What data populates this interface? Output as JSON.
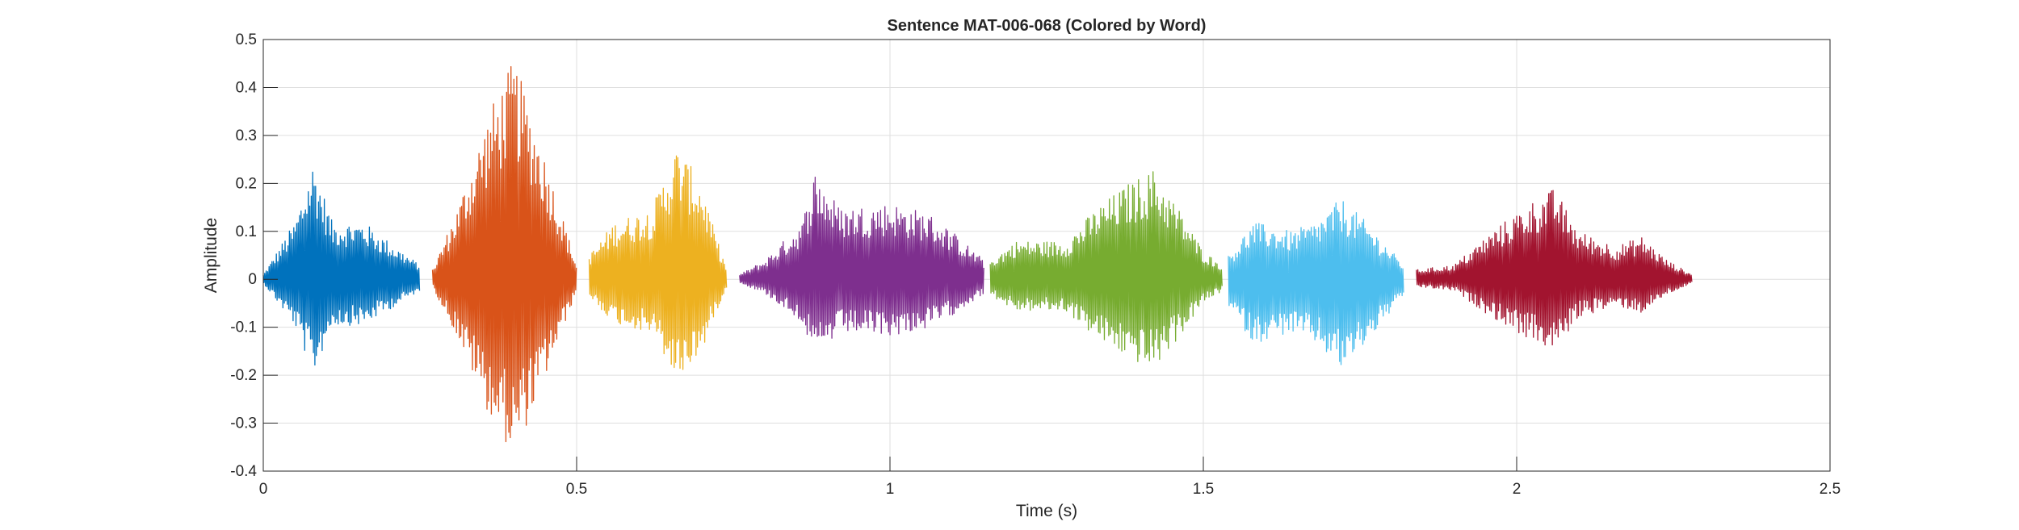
{
  "chart_data": {
    "type": "line",
    "title": "Sentence MAT-006-068 (Colored by Word)",
    "xlabel": "Time (s)",
    "ylabel": "Amplitude",
    "xlim": [
      0,
      2.5
    ],
    "ylim": [
      -0.4,
      0.5
    ],
    "x_ticks": [
      0,
      0.5,
      1,
      1.5,
      2,
      2.5
    ],
    "x_tick_labels": [
      "0",
      "0.5",
      "1",
      "1.5",
      "2",
      "2.5"
    ],
    "y_ticks": [
      -0.4,
      -0.3,
      -0.2,
      -0.1,
      0,
      0.1,
      0.2,
      0.3,
      0.4,
      0.5
    ],
    "y_tick_labels": [
      "-0.4",
      "-0.3",
      "-0.2",
      "-0.1",
      "0",
      "0.1",
      "0.2",
      "0.3",
      "0.4",
      "0.5"
    ],
    "grid": true,
    "series": [
      {
        "color": "#0072BD",
        "x_start": 0.0,
        "x_end": 0.25,
        "y_max": 0.25,
        "y_min": -0.2,
        "envelope": [
          [
            0,
            0.01
          ],
          [
            0.05,
            0.12
          ],
          [
            0.08,
            0.25
          ],
          [
            0.11,
            0.12
          ],
          [
            0.16,
            0.12
          ],
          [
            0.2,
            0.08
          ],
          [
            0.25,
            0.03
          ]
        ]
      },
      {
        "color": "#D95319",
        "x_start": 0.27,
        "x_end": 0.5,
        "y_max": 0.46,
        "y_min": -0.37,
        "envelope": [
          [
            0.27,
            0.02
          ],
          [
            0.31,
            0.15
          ],
          [
            0.36,
            0.35
          ],
          [
            0.4,
            0.46
          ],
          [
            0.44,
            0.3
          ],
          [
            0.48,
            0.12
          ],
          [
            0.5,
            0.03
          ]
        ]
      },
      {
        "color": "#EDB120",
        "x_start": 0.52,
        "x_end": 0.74,
        "y_max": 0.29,
        "y_min": -0.22,
        "envelope": [
          [
            0.52,
            0.05
          ],
          [
            0.56,
            0.12
          ],
          [
            0.62,
            0.15
          ],
          [
            0.66,
            0.28
          ],
          [
            0.7,
            0.2
          ],
          [
            0.72,
            0.1
          ],
          [
            0.74,
            0.02
          ]
        ]
      },
      {
        "color": "#7E2F8E",
        "x_start": 0.76,
        "x_end": 1.15,
        "y_max": 0.23,
        "y_min": -0.17,
        "envelope": [
          [
            0.76,
            0.01
          ],
          [
            0.8,
            0.04
          ],
          [
            0.86,
            0.12
          ],
          [
            0.88,
            0.23
          ],
          [
            0.92,
            0.15
          ],
          [
            1.0,
            0.16
          ],
          [
            1.06,
            0.14
          ],
          [
            1.1,
            0.1
          ],
          [
            1.15,
            0.04
          ]
        ]
      },
      {
        "color": "#77AC30",
        "x_start": 1.16,
        "x_end": 1.53,
        "y_max": 0.23,
        "y_min": -0.19,
        "envelope": [
          [
            1.16,
            0.04
          ],
          [
            1.2,
            0.08
          ],
          [
            1.28,
            0.08
          ],
          [
            1.33,
            0.15
          ],
          [
            1.38,
            0.2
          ],
          [
            1.42,
            0.23
          ],
          [
            1.46,
            0.15
          ],
          [
            1.5,
            0.06
          ],
          [
            1.53,
            0.03
          ]
        ]
      },
      {
        "color": "#4DBEEE",
        "x_start": 1.54,
        "x_end": 1.82,
        "y_max": 0.17,
        "y_min": -0.19,
        "envelope": [
          [
            1.54,
            0.05
          ],
          [
            1.58,
            0.12
          ],
          [
            1.64,
            0.1
          ],
          [
            1.68,
            0.12
          ],
          [
            1.72,
            0.17
          ],
          [
            1.76,
            0.12
          ],
          [
            1.82,
            0.03
          ]
        ]
      },
      {
        "color": "#A2142F",
        "x_start": 1.84,
        "x_end": 2.28,
        "y_max": 0.19,
        "y_min": -0.15,
        "envelope": [
          [
            1.84,
            0.02
          ],
          [
            1.9,
            0.03
          ],
          [
            1.96,
            0.1
          ],
          [
            2.02,
            0.16
          ],
          [
            2.06,
            0.19
          ],
          [
            2.1,
            0.1
          ],
          [
            2.16,
            0.07
          ],
          [
            2.2,
            0.09
          ],
          [
            2.24,
            0.04
          ],
          [
            2.28,
            0.01
          ]
        ]
      }
    ]
  }
}
